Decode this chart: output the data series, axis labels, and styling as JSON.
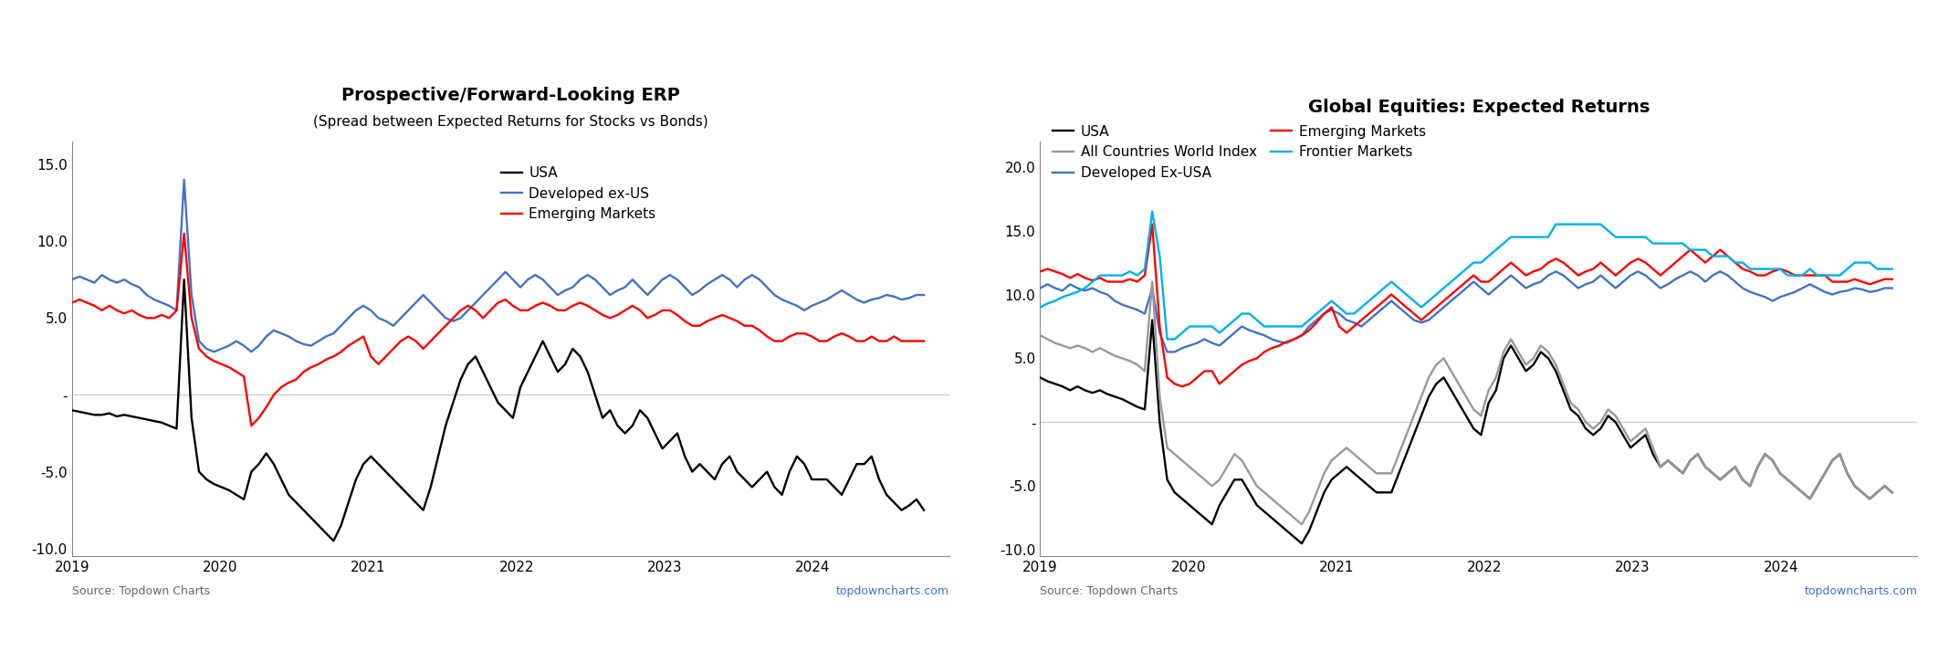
{
  "chart1": {
    "title": "Prospective/Forward-Looking ERP",
    "subtitle": "(Spread between Expected Returns for Stocks vs Bonds)",
    "ylim": [
      -10.5,
      16.5
    ],
    "yticks": [
      -10.0,
      -5.0,
      0.0,
      5.0,
      10.0,
      15.0
    ],
    "ytick_labels": [
      "-10.0",
      "-5.0",
      "-",
      "5.0",
      "10.0",
      "15.0"
    ],
    "source_left": "Source: Topdown Charts",
    "source_right": "topdowncharts.com",
    "series": {
      "USA": {
        "color": "#000000",
        "data": [
          -1.0,
          -1.1,
          -1.2,
          -1.3,
          -1.3,
          -1.2,
          -1.4,
          -1.3,
          -1.4,
          -1.5,
          -1.6,
          -1.7,
          -1.8,
          -2.0,
          -2.2,
          7.5,
          -1.5,
          -5.0,
          -5.5,
          -5.8,
          -6.0,
          -6.2,
          -6.5,
          -6.8,
          -5.0,
          -4.5,
          -3.8,
          -4.5,
          -5.5,
          -6.5,
          -7.0,
          -7.5,
          -8.0,
          -8.5,
          -9.0,
          -9.5,
          -8.5,
          -7.0,
          -5.5,
          -4.5,
          -4.0,
          -4.5,
          -5.0,
          -5.5,
          -6.0,
          -6.5,
          -7.0,
          -7.5,
          -6.0,
          -4.0,
          -2.0,
          -0.5,
          1.0,
          2.0,
          2.5,
          1.5,
          0.5,
          -0.5,
          -1.0,
          -1.5,
          0.5,
          1.5,
          2.5,
          3.5,
          2.5,
          1.5,
          2.0,
          3.0,
          2.5,
          1.5,
          0.0,
          -1.5,
          -1.0,
          -2.0,
          -2.5,
          -2.0,
          -1.0,
          -1.5,
          -2.5,
          -3.5,
          -3.0,
          -2.5,
          -4.0,
          -5.0,
          -4.5,
          -5.0,
          -5.5,
          -4.5,
          -4.0,
          -5.0,
          -5.5,
          -6.0,
          -5.5,
          -5.0,
          -6.0,
          -6.5,
          -5.0,
          -4.0,
          -4.5,
          -5.5,
          -5.5,
          -5.5,
          -6.0,
          -6.5,
          -5.5,
          -4.5,
          -4.5,
          -4.0,
          -5.5,
          -6.5,
          -7.0,
          -7.5,
          -7.2,
          -6.8,
          -7.5
        ]
      },
      "Developed_ex_US": {
        "color": "#4472C4",
        "data": [
          7.5,
          7.7,
          7.5,
          7.3,
          7.8,
          7.5,
          7.3,
          7.5,
          7.2,
          7.0,
          6.5,
          6.2,
          6.0,
          5.8,
          5.5,
          14.0,
          6.5,
          3.5,
          3.0,
          2.8,
          3.0,
          3.2,
          3.5,
          3.2,
          2.8,
          3.2,
          3.8,
          4.2,
          4.0,
          3.8,
          3.5,
          3.3,
          3.2,
          3.5,
          3.8,
          4.0,
          4.5,
          5.0,
          5.5,
          5.8,
          5.5,
          5.0,
          4.8,
          4.5,
          5.0,
          5.5,
          6.0,
          6.5,
          6.0,
          5.5,
          5.0,
          4.8,
          5.0,
          5.5,
          6.0,
          6.5,
          7.0,
          7.5,
          8.0,
          7.5,
          7.0,
          7.5,
          7.8,
          7.5,
          7.0,
          6.5,
          6.8,
          7.0,
          7.5,
          7.8,
          7.5,
          7.0,
          6.5,
          6.8,
          7.0,
          7.5,
          7.0,
          6.5,
          7.0,
          7.5,
          7.8,
          7.5,
          7.0,
          6.5,
          6.8,
          7.2,
          7.5,
          7.8,
          7.5,
          7.0,
          7.5,
          7.8,
          7.5,
          7.0,
          6.5,
          6.2,
          6.0,
          5.8,
          5.5,
          5.8,
          6.0,
          6.2,
          6.5,
          6.8,
          6.5,
          6.2,
          6.0,
          6.2,
          6.3,
          6.5,
          6.4,
          6.2,
          6.3,
          6.5,
          6.5
        ]
      },
      "Emerging_Markets": {
        "color": "#FF0000",
        "data": [
          6.0,
          6.2,
          6.0,
          5.8,
          5.5,
          5.8,
          5.5,
          5.3,
          5.5,
          5.2,
          5.0,
          5.0,
          5.2,
          5.0,
          5.5,
          10.5,
          5.0,
          3.0,
          2.5,
          2.2,
          2.0,
          1.8,
          1.5,
          1.2,
          -2.0,
          -1.5,
          -0.8,
          0.0,
          0.5,
          0.8,
          1.0,
          1.5,
          1.8,
          2.0,
          2.3,
          2.5,
          2.8,
          3.2,
          3.5,
          3.8,
          2.5,
          2.0,
          2.5,
          3.0,
          3.5,
          3.8,
          3.5,
          3.0,
          3.5,
          4.0,
          4.5,
          5.0,
          5.5,
          5.8,
          5.5,
          5.0,
          5.5,
          6.0,
          6.2,
          5.8,
          5.5,
          5.5,
          5.8,
          6.0,
          5.8,
          5.5,
          5.5,
          5.8,
          6.0,
          5.8,
          5.5,
          5.2,
          5.0,
          5.2,
          5.5,
          5.8,
          5.5,
          5.0,
          5.2,
          5.5,
          5.5,
          5.2,
          4.8,
          4.5,
          4.5,
          4.8,
          5.0,
          5.2,
          5.0,
          4.8,
          4.5,
          4.5,
          4.2,
          3.8,
          3.5,
          3.5,
          3.8,
          4.0,
          4.0,
          3.8,
          3.5,
          3.5,
          3.8,
          4.0,
          3.8,
          3.5,
          3.5,
          3.8,
          3.5,
          3.5,
          3.8,
          3.5,
          3.5,
          3.5,
          3.5
        ]
      }
    }
  },
  "chart2": {
    "title": "Global Equities: Expected Returns",
    "ylim": [
      -10.5,
      22.0
    ],
    "yticks": [
      -10.0,
      -5.0,
      0.0,
      5.0,
      10.0,
      15.0,
      20.0
    ],
    "ytick_labels": [
      "-10.0",
      "-5.0",
      "-",
      "5.0",
      "10.0",
      "15.0",
      "20.0"
    ],
    "source_left": "Source: Topdown Charts",
    "source_right": "topdowncharts.com",
    "series": {
      "USA": {
        "color": "#000000",
        "data": [
          3.5,
          3.2,
          3.0,
          2.8,
          2.5,
          2.8,
          2.5,
          2.3,
          2.5,
          2.2,
          2.0,
          1.8,
          1.5,
          1.2,
          1.0,
          8.0,
          0.0,
          -4.5,
          -5.5,
          -6.0,
          -6.5,
          -7.0,
          -7.5,
          -8.0,
          -6.5,
          -5.5,
          -4.5,
          -4.5,
          -5.5,
          -6.5,
          -7.0,
          -7.5,
          -8.0,
          -8.5,
          -9.0,
          -9.5,
          -8.5,
          -7.0,
          -5.5,
          -4.5,
          -4.0,
          -3.5,
          -4.0,
          -4.5,
          -5.0,
          -5.5,
          -5.5,
          -5.5,
          -4.0,
          -2.5,
          -1.0,
          0.5,
          2.0,
          3.0,
          3.5,
          2.5,
          1.5,
          0.5,
          -0.5,
          -1.0,
          1.5,
          2.5,
          5.0,
          6.0,
          5.0,
          4.0,
          4.5,
          5.5,
          5.0,
          4.0,
          2.5,
          1.0,
          0.5,
          -0.5,
          -1.0,
          -0.5,
          0.5,
          0.0,
          -1.0,
          -2.0,
          -1.5,
          -1.0,
          -2.5,
          -3.5,
          -3.0,
          -3.5,
          -4.0,
          -3.0,
          -2.5,
          -3.5,
          -4.0,
          -4.5,
          -4.0,
          -3.5,
          -4.5,
          -5.0,
          -3.5,
          -2.5,
          -3.0,
          -4.0,
          -4.5,
          -5.0,
          -5.5,
          -6.0,
          -5.0,
          -4.0,
          -3.0,
          -2.5,
          -4.0,
          -5.0,
          -5.5,
          -6.0,
          -5.5,
          -5.0,
          -5.5
        ]
      },
      "Developed_Ex_USA": {
        "color": "#4472C4",
        "data": [
          10.5,
          10.8,
          10.5,
          10.3,
          10.8,
          10.5,
          10.3,
          10.5,
          10.2,
          10.0,
          9.5,
          9.2,
          9.0,
          8.8,
          8.5,
          10.5,
          7.0,
          5.5,
          5.5,
          5.8,
          6.0,
          6.2,
          6.5,
          6.2,
          6.0,
          6.5,
          7.0,
          7.5,
          7.2,
          7.0,
          6.8,
          6.5,
          6.3,
          6.2,
          6.5,
          6.8,
          7.5,
          8.0,
          8.5,
          8.8,
          8.5,
          8.0,
          7.8,
          7.5,
          8.0,
          8.5,
          9.0,
          9.5,
          9.0,
          8.5,
          8.0,
          7.8,
          8.0,
          8.5,
          9.0,
          9.5,
          10.0,
          10.5,
          11.0,
          10.5,
          10.0,
          10.5,
          11.0,
          11.5,
          11.0,
          10.5,
          10.8,
          11.0,
          11.5,
          11.8,
          11.5,
          11.0,
          10.5,
          10.8,
          11.0,
          11.5,
          11.0,
          10.5,
          11.0,
          11.5,
          11.8,
          11.5,
          11.0,
          10.5,
          10.8,
          11.2,
          11.5,
          11.8,
          11.5,
          11.0,
          11.5,
          11.8,
          11.5,
          11.0,
          10.5,
          10.2,
          10.0,
          9.8,
          9.5,
          9.8,
          10.0,
          10.2,
          10.5,
          10.8,
          10.5,
          10.2,
          10.0,
          10.2,
          10.3,
          10.5,
          10.4,
          10.2,
          10.3,
          10.5,
          10.5
        ]
      },
      "Emerging_Markets": {
        "color": "#FF0000",
        "data": [
          11.8,
          12.0,
          11.8,
          11.6,
          11.3,
          11.6,
          11.3,
          11.1,
          11.3,
          11.0,
          11.0,
          11.0,
          11.2,
          11.0,
          11.5,
          15.5,
          7.5,
          3.5,
          3.0,
          2.8,
          3.0,
          3.5,
          4.0,
          4.0,
          3.0,
          3.5,
          4.0,
          4.5,
          4.8,
          5.0,
          5.5,
          5.8,
          6.0,
          6.3,
          6.5,
          6.8,
          7.2,
          7.8,
          8.5,
          9.0,
          7.5,
          7.0,
          7.5,
          8.0,
          8.5,
          9.0,
          9.5,
          10.0,
          9.5,
          9.0,
          8.5,
          8.0,
          8.5,
          9.0,
          9.5,
          10.0,
          10.5,
          11.0,
          11.5,
          11.0,
          11.0,
          11.5,
          12.0,
          12.5,
          12.0,
          11.5,
          11.8,
          12.0,
          12.5,
          12.8,
          12.5,
          12.0,
          11.5,
          11.8,
          12.0,
          12.5,
          12.0,
          11.5,
          12.0,
          12.5,
          12.8,
          12.5,
          12.0,
          11.5,
          12.0,
          12.5,
          13.0,
          13.5,
          13.0,
          12.5,
          13.0,
          13.5,
          13.0,
          12.5,
          12.0,
          11.8,
          11.5,
          11.5,
          11.8,
          12.0,
          11.8,
          11.5,
          11.5,
          11.5,
          11.5,
          11.5,
          11.0,
          11.0,
          11.0,
          11.2,
          11.0,
          10.8,
          11.0,
          11.2,
          11.2
        ]
      },
      "Frontier_Markets": {
        "color": "#00B0F0",
        "data": [
          9.0,
          9.3,
          9.5,
          9.8,
          10.0,
          10.2,
          10.5,
          11.0,
          11.5,
          11.5,
          11.5,
          11.5,
          11.8,
          11.5,
          12.0,
          16.5,
          13.0,
          6.5,
          6.5,
          7.0,
          7.5,
          7.5,
          7.5,
          7.5,
          7.0,
          7.5,
          8.0,
          8.5,
          8.5,
          8.0,
          7.5,
          7.5,
          7.5,
          7.5,
          7.5,
          7.5,
          8.0,
          8.5,
          9.0,
          9.5,
          9.0,
          8.5,
          8.5,
          9.0,
          9.5,
          10.0,
          10.5,
          11.0,
          10.5,
          10.0,
          9.5,
          9.0,
          9.5,
          10.0,
          10.5,
          11.0,
          11.5,
          12.0,
          12.5,
          12.5,
          13.0,
          13.5,
          14.0,
          14.5,
          14.5,
          14.5,
          14.5,
          14.5,
          14.5,
          15.5,
          15.5,
          15.5,
          15.5,
          15.5,
          15.5,
          15.5,
          15.0,
          14.5,
          14.5,
          14.5,
          14.5,
          14.5,
          14.0,
          14.0,
          14.0,
          14.0,
          14.0,
          13.5,
          13.5,
          13.5,
          13.0,
          13.0,
          13.0,
          12.5,
          12.5,
          12.0,
          12.0,
          12.0,
          12.0,
          12.0,
          11.5,
          11.5,
          11.5,
          12.0,
          11.5,
          11.5,
          11.5,
          11.5,
          12.0,
          12.5,
          12.5,
          12.5,
          12.0,
          12.0,
          12.0
        ]
      },
      "All_Countries_World": {
        "color": "#999999",
        "data": [
          6.8,
          6.5,
          6.2,
          6.0,
          5.8,
          6.0,
          5.8,
          5.5,
          5.8,
          5.5,
          5.2,
          5.0,
          4.8,
          4.5,
          4.0,
          11.0,
          2.0,
          -2.0,
          -2.5,
          -3.0,
          -3.5,
          -4.0,
          -4.5,
          -5.0,
          -4.5,
          -3.5,
          -2.5,
          -3.0,
          -4.0,
          -5.0,
          -5.5,
          -6.0,
          -6.5,
          -7.0,
          -7.5,
          -8.0,
          -7.0,
          -5.5,
          -4.0,
          -3.0,
          -2.5,
          -2.0,
          -2.5,
          -3.0,
          -3.5,
          -4.0,
          -4.0,
          -4.0,
          -2.5,
          -1.0,
          0.5,
          2.0,
          3.5,
          4.5,
          5.0,
          4.0,
          3.0,
          2.0,
          1.0,
          0.5,
          2.5,
          3.5,
          5.5,
          6.5,
          5.5,
          4.5,
          5.0,
          6.0,
          5.5,
          4.5,
          3.0,
          1.5,
          1.0,
          0.0,
          -0.5,
          0.0,
          1.0,
          0.5,
          -0.5,
          -1.5,
          -1.0,
          -0.5,
          -2.0,
          -3.5,
          -3.0,
          -3.5,
          -4.0,
          -3.0,
          -2.5,
          -3.5,
          -4.0,
          -4.5,
          -4.0,
          -3.5,
          -4.5,
          -5.0,
          -3.5,
          -2.5,
          -3.0,
          -4.0,
          -4.5,
          -5.0,
          -5.5,
          -6.0,
          -5.0,
          -4.0,
          -3.0,
          -2.5,
          -4.0,
          -5.0,
          -5.5,
          -6.0,
          -5.5,
          -5.0,
          -5.5
        ]
      }
    }
  }
}
